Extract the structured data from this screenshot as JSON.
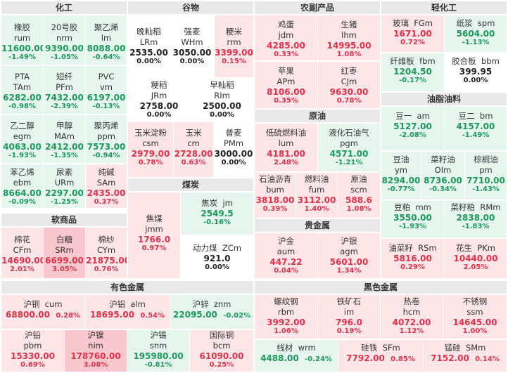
{
  "sections": {
    "huagong": "化工",
    "guwu": "谷物",
    "nongfu": "农副产品",
    "qinggong": "轻化工",
    "youzhi": "油脂油料",
    "yuanyou": "原油",
    "meitan": "煤炭",
    "ruanshang": "软商品",
    "guijinshu": "贵金属",
    "youse": "有色金属",
    "heise": "黑色金属"
  },
  "cells": {
    "rum": {
      "cn": "橡胶",
      "code": "rum",
      "price": "11600.00",
      "pct": "-1.49%"
    },
    "nrm": {
      "cn": "20号胶",
      "code": "nrm",
      "price": "9390.00",
      "pct": "-1.05%"
    },
    "lm": {
      "cn": "聚乙烯",
      "code": "lm",
      "price": "8088.00",
      "pct": "-0.64%"
    },
    "tam": {
      "cn": "PTA",
      "code": "TAm",
      "price": "6282.00",
      "pct": "-0.98%"
    },
    "pfm": {
      "cn": "短纤",
      "code": "PFm",
      "price": "7432.00",
      "pct": "-2.39%"
    },
    "vm": {
      "cn": "PVC",
      "code": "vm",
      "price": "6197.00",
      "pct": "-0.13%"
    },
    "egm": {
      "cn": "乙二醇",
      "code": "egm",
      "price": "4063.00",
      "pct": "-1.93%"
    },
    "mam": {
      "cn": "甲醇",
      "code": "MAm",
      "price": "2412.00",
      "pct": "-1.35%"
    },
    "ppm": {
      "cn": "聚丙烯",
      "code": "ppm",
      "price": "7573.00",
      "pct": "-0.94%"
    },
    "ebm": {
      "cn": "苯乙烯",
      "code": "ebm",
      "price": "8664.00",
      "pct": "-0.09%"
    },
    "urm": {
      "cn": "尿素",
      "code": "URm",
      "price": "2297.00",
      "pct": "-1.25%"
    },
    "sam": {
      "cn": "纯碱",
      "code": "SAm",
      "price": "2435.00",
      "pct": "0.37%"
    },
    "lrm": {
      "cn": "晚籼稻",
      "code": "LRm",
      "price": "2535.00",
      "pct": "0.00%"
    },
    "whm": {
      "cn": "强麦",
      "code": "WHm",
      "price": "3050.00",
      "pct": "0.00%"
    },
    "rrm": {
      "cn": "粳米",
      "code": "rrm",
      "price": "3399.00",
      "pct": "0.15%"
    },
    "jrm": {
      "cn": "粳稻",
      "code": "JRm",
      "price": "2758.00",
      "pct": "0.00%"
    },
    "rim": {
      "cn": "早籼稻",
      "code": "RIm",
      "price": "2500.00",
      "pct": "0.00%"
    },
    "csm": {
      "cn": "玉米淀粉",
      "code": "csm",
      "price": "2979.00",
      "pct": "0.78%"
    },
    "cm": {
      "cn": "玉米",
      "code": "cm",
      "price": "2728.00",
      "pct": "0.63%"
    },
    "pmm": {
      "cn": "普麦",
      "code": "PMm",
      "price": "3000.00",
      "pct": "0.00%"
    },
    "jdm": {
      "cn": "鸡蛋",
      "code": "jdm",
      "price": "4285.00",
      "pct": "0.33%"
    },
    "lhm": {
      "cn": "生猪",
      "code": "lhm",
      "price": "14995.00",
      "pct": "1.08%"
    },
    "apm": {
      "cn": "苹果",
      "code": "APm",
      "price": "8106.00",
      "pct": "0.35%"
    },
    "cjm": {
      "cn": "红枣",
      "code": "CJm",
      "price": "9630.00",
      "pct": "0.78%"
    },
    "fgm": {
      "cn": "玻璃",
      "code": "FGm",
      "price": "1671.00",
      "pct": "0.72%"
    },
    "spm": {
      "cn": "纸浆",
      "code": "spm",
      "price": "5604.00",
      "pct": "-1.13%"
    },
    "fbm": {
      "cn": "纤维板",
      "code": "fbm",
      "price": "1204.50",
      "pct": "-0.17%"
    },
    "bbm": {
      "cn": "胶合板",
      "code": "bbm",
      "price": "399.95",
      "pct": "0.00%"
    },
    "am": {
      "cn": "豆一",
      "code": "am",
      "price": "5127.00",
      "pct": "-2.08%"
    },
    "bm": {
      "cn": "豆二",
      "code": "bm",
      "price": "4157.00",
      "pct": "-1.49%"
    },
    "ym": {
      "cn": "豆油",
      "code": "ym",
      "price": "8294.00",
      "pct": "-0.77%"
    },
    "oim": {
      "cn": "菜籽油",
      "code": "OIm",
      "price": "8736.00",
      "pct": "-0.34%"
    },
    "pm": {
      "cn": "棕榈油",
      "code": "pm",
      "price": "7710.00",
      "pct": "-1.43%"
    },
    "mm": {
      "cn": "豆粕",
      "code": "mm",
      "price": "3550.00",
      "pct": "-1.93%"
    },
    "rmm": {
      "cn": "菜籽粕",
      "code": "RMm",
      "price": "2838.00",
      "pct": "-1.83%"
    },
    "rsm": {
      "cn": "油菜籽",
      "code": "RSm",
      "price": "5816.00",
      "pct": "0.29%"
    },
    "pkm": {
      "cn": "花生",
      "code": "PKm",
      "price": "10440.00",
      "pct": "2.05%"
    },
    "lum": {
      "cn": "低硫燃料油",
      "code": "lum",
      "price": "4181.00",
      "pct": "2.48%"
    },
    "pgm": {
      "cn": "液化石油气",
      "code": "pgm",
      "price": "4571.00",
      "pct": "-1.21%"
    },
    "bum": {
      "cn": "石油沥青",
      "code": "bum",
      "price": "3818.00",
      "pct": "0.39%"
    },
    "fum": {
      "cn": "燃料油",
      "code": "fum",
      "price": "3112.00",
      "pct": "1.40%"
    },
    "scm": {
      "cn": "原油",
      "code": "scm",
      "price": "588.6",
      "pct": "1.08%"
    },
    "jmm": {
      "cn": "焦煤",
      "code": "jmm",
      "price": "1766.0",
      "pct": "0.97%"
    },
    "jm": {
      "cn": "焦炭",
      "code": "jm",
      "price": "2549.5",
      "pct": "-0.16%"
    },
    "zcm": {
      "cn": "动力煤",
      "code": "ZCm",
      "price": "921.0",
      "pct": "0.00%"
    },
    "cfm": {
      "cn": "棉花",
      "code": "CFm",
      "price": "14690.00",
      "pct": "2.01%"
    },
    "srm": {
      "cn": "白糖",
      "code": "SRm",
      "price": "6699.00",
      "pct": "3.05%"
    },
    "cym": {
      "cn": "棉纱",
      "code": "CYm",
      "price": "21875.00",
      "pct": "0.76%"
    },
    "aum": {
      "cn": "沪金",
      "code": "aum",
      "price": "447.22",
      "pct": "0.04%"
    },
    "agm": {
      "cn": "沪银",
      "code": "agm",
      "price": "5601.00",
      "pct": "1.34%"
    },
    "cum": {
      "cn": "沪铜",
      "code": "cum",
      "price": "68800.00",
      "pct": "0.28%"
    },
    "alm": {
      "cn": "沪铝",
      "code": "alm",
      "price": "18695.00",
      "pct": "0.54%"
    },
    "znm": {
      "cn": "沪锌",
      "code": "znm",
      "price": "22095.00",
      "pct": "-0.02%"
    },
    "pbm": {
      "cn": "沪铅",
      "code": "pbm",
      "price": "15330.00",
      "pct": "0.69%"
    },
    "nim": {
      "cn": "沪镍",
      "code": "nim",
      "price": "178760.00",
      "pct": "3.08%"
    },
    "snm": {
      "cn": "沪锡",
      "code": "snm",
      "price": "195980.00",
      "pct": "-0.81%"
    },
    "bcm": {
      "cn": "国际铜",
      "code": "bcm",
      "price": "61090.00",
      "pct": "0.25%"
    },
    "rbm": {
      "cn": "螺纹钢",
      "code": "rbm",
      "price": "3992.00",
      "pct": "1.06%"
    },
    "im": {
      "cn": "铁矿石",
      "code": "im",
      "price": "796.0",
      "pct": "0.19%"
    },
    "hcm": {
      "cn": "热卷",
      "code": "hcm",
      "price": "4072.00",
      "pct": "1.12%"
    },
    "ssm": {
      "cn": "不锈钢",
      "code": "ssm",
      "price": "14645.00",
      "pct": "1.00%"
    },
    "wrm": {
      "cn": "线材",
      "code": "wrm",
      "price": "4488.00",
      "pct": "-0.24%"
    },
    "sfm": {
      "cn": "硅铁",
      "code": "SFm",
      "price": "7792.00",
      "pct": "0.85%"
    },
    "smm": {
      "cn": "锰硅",
      "code": "SMm",
      "price": "7152.00",
      "pct": "0.14%"
    }
  }
}
